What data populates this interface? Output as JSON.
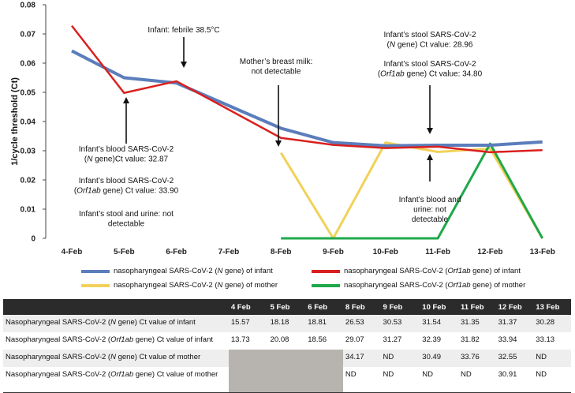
{
  "chart_data": {
    "type": "line",
    "ylabel": "1/cycle threshold (Ct)",
    "ylim": [
      0,
      0.08
    ],
    "yticks": [
      "0",
      "0.01",
      "0.02",
      "0.03",
      "0.04",
      "0.05",
      "0.06",
      "0.07",
      "0.08"
    ],
    "categories": [
      "4-Feb",
      "5-Feb",
      "6-Feb",
      "7-Feb",
      "8-Feb",
      "9-Feb",
      "10-Feb",
      "11-Feb",
      "12-Feb",
      "13-Feb"
    ],
    "series": [
      {
        "name": "nasopharyngeal SARS-CoV-2 (N gene) of infant",
        "color": "#5b7dbc",
        "values": [
          0.0642,
          0.055,
          0.0532,
          null,
          0.0377,
          0.0328,
          0.0317,
          0.0319,
          0.0319,
          0.033
        ]
      },
      {
        "name": "nasopharyngeal SARS-CoV-2 (Orf1ab gene) of infant",
        "color": "#d9201f",
        "values": [
          0.0728,
          0.0498,
          0.0538,
          null,
          0.0344,
          0.032,
          0.0309,
          0.0314,
          0.0295,
          0.0302
        ]
      },
      {
        "name": "nasopharyngeal SARS-CoV-2 (N gene) of mother",
        "color": "#f2d15a",
        "values": [
          null,
          null,
          null,
          null,
          0.0293,
          0,
          0.0328,
          0.0296,
          0.0307,
          0
        ]
      },
      {
        "name": "nasopharyngeal SARS-CoV-2 (Orf1ab gene) of mother",
        "color": "#1fa84a",
        "values": [
          null,
          null,
          null,
          null,
          0,
          0,
          0,
          0,
          0.0324,
          0
        ]
      }
    ],
    "annotations": [
      {
        "id": "febrile",
        "lines": [
          "Infant: febrile 38.5°C"
        ]
      },
      {
        "id": "milk",
        "lines": [
          "Mother’s breast milk:",
          "not detectable"
        ]
      },
      {
        "id": "stool_n",
        "lines": [
          "Infant’s stool SARS-CoV-2",
          "(N gene) Ct value: 28.96"
        ]
      },
      {
        "id": "stool_orf",
        "lines": [
          "Infant’s stool SARS-CoV-2",
          "(Orf1ab gene) Ct value: 34.80"
        ]
      },
      {
        "id": "blood_n",
        "lines": [
          "Infant’s blood SARS-CoV-2",
          "(N gene)Ct value: 32.87"
        ]
      },
      {
        "id": "blood_orf",
        "lines": [
          "Infant’s blood SARS-CoV-2",
          "(Orf1ab gene) Ct value: 33.90"
        ]
      },
      {
        "id": "stool_urine",
        "lines": [
          "Infant’s stool and urine: not",
          "detectable"
        ]
      },
      {
        "id": "blood_urine",
        "lines": [
          "Infant’s blood and",
          "urine: not",
          "detectable"
        ]
      }
    ]
  },
  "legend": [
    {
      "pre": "nasopharyngeal SARS-CoV-2 (",
      "gene": "N",
      "post": " gene) of infant",
      "color": "#5b7dbc"
    },
    {
      "pre": "nasopharyngeal SARS-CoV-2 (",
      "gene": "Orf1ab",
      "post": " gene) of infant",
      "color": "#d9201f"
    },
    {
      "pre": "nasopharyngeal SARS-CoV-2 (",
      "gene": "N",
      "post": " gene) of mother",
      "color": "#f2d15a"
    },
    {
      "pre": "nasopharyngeal SARS-CoV-2 (",
      "gene": "Orf1ab",
      "post": " gene) of mother",
      "color": "#1fa84a"
    }
  ],
  "table": {
    "headers": [
      "",
      "4 Feb",
      "5 Feb",
      "6 Feb",
      "8 Feb",
      "9 Feb",
      "10 Feb",
      "11 Feb",
      "12 Feb",
      "13 Feb"
    ],
    "rows": [
      {
        "pre": "Nasopharyngeal SARS-CoV-2 (",
        "gene": "N",
        "post": " gene) Ct value of infant",
        "cells": [
          "15.57",
          "18.18",
          "18.81",
          "26.53",
          "30.53",
          "31.54",
          "31.35",
          "31.37",
          "30.28"
        ]
      },
      {
        "pre": "Nasopharyngeal SARS-CoV-2 (",
        "gene": "Orf1ab",
        "post": " gene) Ct value of infant",
        "cells": [
          "13.73",
          "20.08",
          "18.56",
          "29.07",
          "31.27",
          "32.39",
          "31.82",
          "33.94",
          "33.13"
        ]
      },
      {
        "pre": "Nasopharyngeal SARS-CoV-2 (",
        "gene": "N",
        "post": " gene) Ct value of mother",
        "cells": [
          "",
          "",
          "",
          "34.17",
          "ND",
          "30.49",
          "33.76",
          "32.55",
          "ND"
        ]
      },
      {
        "pre": "Nasopharyngeal SARS-CoV-2 (",
        "gene": "Orf1ab",
        "post": " gene) Ct value of mother",
        "cells": [
          "",
          "",
          "",
          "ND",
          "ND",
          "ND",
          "ND",
          "30.91",
          "ND"
        ]
      }
    ]
  }
}
